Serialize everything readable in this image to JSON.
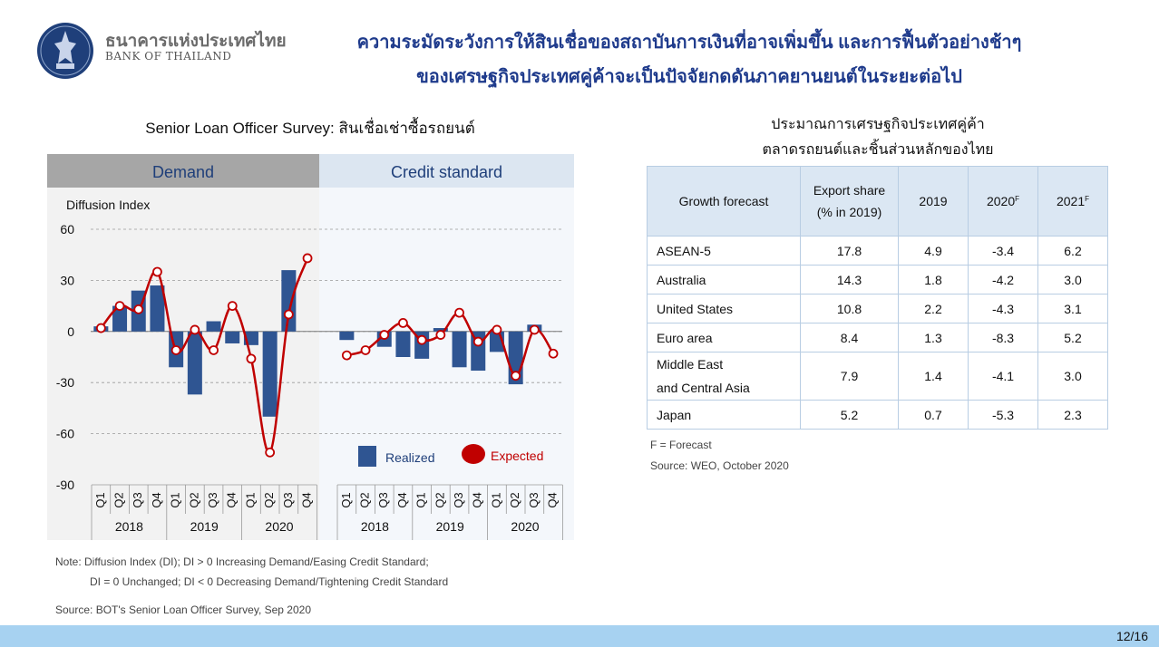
{
  "header": {
    "bank_name_th": "ธนาคารแห่งประเทศไทย",
    "bank_name_en": "BANK OF THAILAND",
    "title_line1": "ความระมัดระวังการให้สินเชื่อของสถาบันการเงินที่อาจเพิ่มขึ้น และการฟื้นตัวอย่างช้าๆ",
    "title_line2": "ของเศรษฐกิจประเทศคู่ค้าจะเป็นปัจจัยกดดันภาคยานยนต์ในระยะต่อไป"
  },
  "left": {
    "chart_title": "Senior Loan Officer Survey: สินเชื่อเช่าซื้อรถยนต์",
    "note_line1": "Note: Diffusion Index (DI); DI > 0 Increasing Demand/Easing Credit Standard;",
    "note_line2": "DI = 0 Unchanged; DI < 0 Decreasing Demand/Tightening Credit Standard",
    "source": "Source: BOT's Senior Loan Officer Survey, Sep 2020"
  },
  "chart_data": {
    "type": "bar",
    "panels": [
      "Demand",
      "Credit standard"
    ],
    "ylabel": "Diffusion Index",
    "ylim": [
      -90,
      60
    ],
    "yticks": [
      60,
      30,
      0,
      -30,
      -60,
      -90
    ],
    "grid": true,
    "legend_position": "bottom-right",
    "colors": {
      "realized": "#2f5592",
      "expected": "#c00000",
      "panel_left_header": "#a6a6a6",
      "panel_right_header": "#dce6f1",
      "panel_left_bg": "#f2f2f2",
      "panel_right_bg": "#f4f7fb"
    },
    "quarters": [
      "Q1",
      "Q2",
      "Q3",
      "Q4",
      "Q1",
      "Q2",
      "Q3",
      "Q4",
      "Q1",
      "Q2",
      "Q3",
      "Q4"
    ],
    "years": [
      "2018",
      "2019",
      "2020"
    ],
    "series": [
      {
        "name": "Realized",
        "style": "bar",
        "demand": [
          3,
          15,
          24,
          27,
          -21,
          -37,
          6,
          -7,
          -8,
          -50,
          36,
          0
        ],
        "credit_standard": [
          -5,
          0,
          -9,
          -15,
          -16,
          2,
          -21,
          -23,
          -12,
          -31,
          4,
          0
        ]
      },
      {
        "name": "Expected",
        "style": "line-marker",
        "demand": [
          2,
          15,
          13,
          35,
          -11,
          1,
          -11,
          15,
          -16,
          -71,
          10,
          43
        ],
        "credit_standard": [
          -14,
          -11,
          -2,
          5,
          -5,
          -2,
          11,
          -6,
          1,
          -26,
          1,
          -13
        ]
      }
    ]
  },
  "right": {
    "title_line1": "ประมาณการเศรษฐกิจประเทศคู่ค้า",
    "title_line2": "ตลาดรถยนต์และชิ้นส่วนหลักของไทย",
    "headers": {
      "growth": "Growth forecast",
      "share1": "Export share",
      "share2": "(% in 2019)",
      "y2019": "2019",
      "y2020": "2020",
      "y2021": "2021",
      "sup": "F"
    },
    "rows": [
      {
        "country": "ASEAN-5",
        "share": "17.8",
        "y2019": "4.9",
        "y2020": "-3.4",
        "y2021": "6.2"
      },
      {
        "country": "Australia",
        "share": "14.3",
        "y2019": "1.8",
        "y2020": "-4.2",
        "y2021": "3.0"
      },
      {
        "country": "United States",
        "share": "10.8",
        "y2019": "2.2",
        "y2020": "-4.3",
        "y2021": "3.1"
      },
      {
        "country": "Euro area",
        "share": "8.4",
        "y2019": "1.3",
        "y2020": "-8.3",
        "y2021": "5.2"
      },
      {
        "country": "Middle East",
        "country2": "and Central Asia",
        "share": "7.9",
        "y2019": "1.4",
        "y2020": "-4.1",
        "y2021": "3.0"
      },
      {
        "country": "Japan",
        "share": "5.2",
        "y2019": "0.7",
        "y2020": "-5.3",
        "y2021": "2.3"
      }
    ],
    "footnote": "F = Forecast",
    "source": "Source: WEO, October 2020"
  },
  "footer": {
    "page": "12/16"
  }
}
